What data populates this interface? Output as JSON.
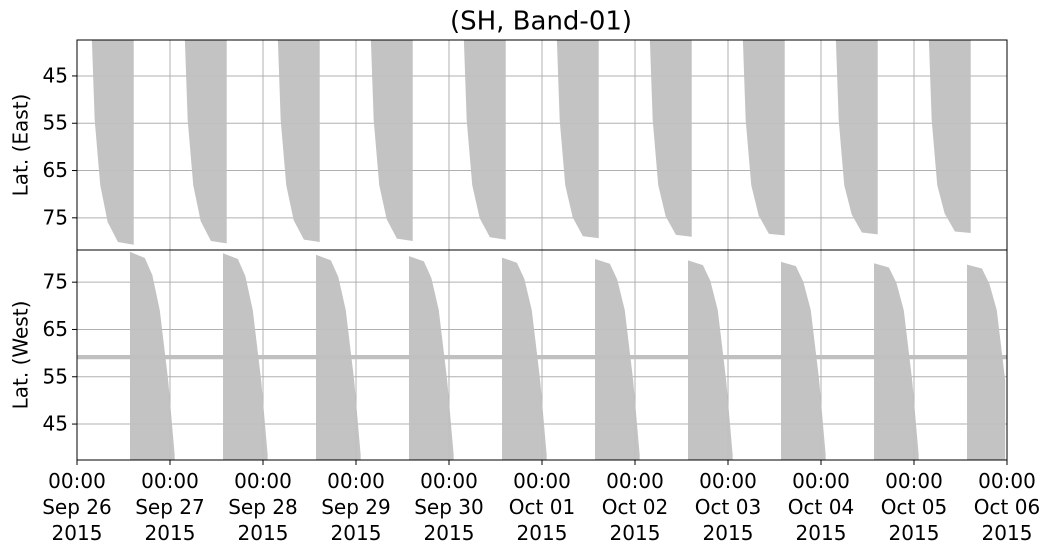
{
  "chart_data": [
    {
      "type": "area",
      "title": "(SH, Band-01)",
      "ylabel": "Lat. (East)",
      "color": "#c0c0c0",
      "yinvert": true,
      "grid": true,
      "xlim": [
        0,
        10
      ],
      "ylim": [
        37.4,
        81.8
      ],
      "yticks": [
        45,
        55,
        65,
        75
      ],
      "series": [
        {
          "x": [
            0.16,
            0.19,
            0.25,
            0.33,
            0.44,
            0.61
          ],
          "values": [
            37.4,
            54.3,
            68.1,
            75.9,
            80.1,
            80.7
          ]
        },
        {
          "x": [
            1.16,
            1.19,
            1.25,
            1.33,
            1.44,
            1.61
          ],
          "values": [
            37.4,
            54.3,
            68.1,
            75.7,
            79.9,
            80.4
          ]
        },
        {
          "x": [
            2.16,
            2.19,
            2.25,
            2.33,
            2.44,
            2.61
          ],
          "values": [
            37.4,
            54.3,
            68.1,
            75.5,
            79.6,
            80.1
          ]
        },
        {
          "x": [
            3.16,
            3.19,
            3.25,
            3.33,
            3.44,
            3.61
          ],
          "values": [
            37.4,
            54.3,
            68.1,
            75.3,
            79.4,
            79.9
          ]
        },
        {
          "x": [
            4.16,
            4.19,
            4.25,
            4.33,
            4.44,
            4.61
          ],
          "values": [
            37.4,
            54.3,
            68.1,
            75.1,
            79.1,
            79.6
          ]
        },
        {
          "x": [
            5.16,
            5.19,
            5.25,
            5.33,
            5.44,
            5.61
          ],
          "values": [
            37.4,
            54.3,
            68.1,
            74.9,
            78.9,
            79.3
          ]
        },
        {
          "x": [
            6.16,
            6.19,
            6.25,
            6.33,
            6.44,
            6.61
          ],
          "values": [
            37.4,
            54.3,
            68.1,
            74.7,
            78.6,
            79.0
          ]
        },
        {
          "x": [
            7.16,
            7.19,
            7.25,
            7.33,
            7.44,
            7.61
          ],
          "values": [
            37.4,
            54.3,
            68.1,
            74.5,
            78.4,
            78.7
          ]
        },
        {
          "x": [
            8.16,
            8.19,
            8.25,
            8.33,
            8.44,
            8.61
          ],
          "values": [
            37.4,
            54.3,
            68.1,
            74.3,
            78.1,
            78.5
          ]
        },
        {
          "x": [
            9.16,
            9.19,
            9.25,
            9.33,
            9.44,
            9.61
          ],
          "values": [
            37.4,
            54.3,
            68.1,
            74.1,
            77.9,
            78.2
          ]
        }
      ]
    },
    {
      "type": "area",
      "ylabel": "Lat. (West)",
      "color": "#c0c0c0",
      "yinvert": false,
      "grid": true,
      "xlim": [
        0,
        10
      ],
      "ylim": [
        37.4,
        81.8
      ],
      "yticks": [
        45,
        55,
        65,
        75
      ],
      "band_y": [
        58.7,
        59.6
      ],
      "xticks": [
        {
          "value": 0,
          "label": "00:00\nSep 26\n2015"
        },
        {
          "value": 1,
          "label": "00:00\nSep 27\n2015"
        },
        {
          "value": 2,
          "label": "00:00\nSep 28\n2015"
        },
        {
          "value": 3,
          "label": "00:00\nSep 29\n2015"
        },
        {
          "value": 4,
          "label": "00:00\nSep 30\n2015"
        },
        {
          "value": 5,
          "label": "00:00\nOct 01\n2015"
        },
        {
          "value": 6,
          "label": "00:00\nOct 02\n2015"
        },
        {
          "value": 7,
          "label": "00:00\nOct 03\n2015"
        },
        {
          "value": 8,
          "label": "00:00\nOct 04\n2015"
        },
        {
          "value": 9,
          "label": "00:00\nOct 05\n2015"
        },
        {
          "value": 10,
          "label": "00:00\nOct 06\n2015"
        }
      ],
      "series": [
        {
          "x": [
            0.57,
            0.73,
            0.81,
            0.89,
            0.98,
            1.05
          ],
          "values": [
            81.4,
            80.1,
            76.5,
            69.1,
            54.3,
            38.5
          ]
        },
        {
          "x": [
            1.57,
            1.73,
            1.81,
            1.89,
            1.98,
            2.05
          ],
          "values": [
            81.1,
            79.9,
            76.3,
            69.1,
            54.3,
            38.5
          ]
        },
        {
          "x": [
            2.57,
            2.73,
            2.81,
            2.89,
            2.98,
            3.05
          ],
          "values": [
            80.8,
            79.6,
            76.1,
            69.1,
            54.3,
            38.5
          ]
        },
        {
          "x": [
            3.57,
            3.73,
            3.81,
            3.89,
            3.98,
            4.05
          ],
          "values": [
            80.5,
            79.4,
            75.9,
            69.1,
            54.3,
            38.5
          ]
        },
        {
          "x": [
            4.57,
            4.73,
            4.81,
            4.89,
            4.98,
            5.05
          ],
          "values": [
            80.2,
            79.1,
            75.7,
            69.1,
            54.3,
            38.5
          ]
        },
        {
          "x": [
            5.57,
            5.73,
            5.81,
            5.89,
            5.98,
            6.05
          ],
          "values": [
            79.9,
            78.9,
            75.5,
            69.1,
            54.3,
            38.5
          ]
        },
        {
          "x": [
            6.57,
            6.73,
            6.81,
            6.89,
            6.98,
            7.05
          ],
          "values": [
            79.6,
            78.6,
            75.3,
            69.1,
            54.3,
            38.5
          ]
        },
        {
          "x": [
            7.57,
            7.73,
            7.81,
            7.89,
            7.98,
            8.05
          ],
          "values": [
            79.3,
            78.4,
            75.1,
            69.1,
            54.3,
            38.5
          ]
        },
        {
          "x": [
            8.57,
            8.73,
            8.81,
            8.89,
            8.98,
            9.05
          ],
          "values": [
            79.0,
            78.1,
            74.9,
            69.1,
            54.3,
            38.5
          ]
        },
        {
          "x": [
            9.57,
            9.73,
            9.81,
            9.89,
            9.98
          ],
          "values": [
            78.7,
            77.9,
            74.7,
            69.1,
            54.3
          ]
        }
      ]
    }
  ]
}
